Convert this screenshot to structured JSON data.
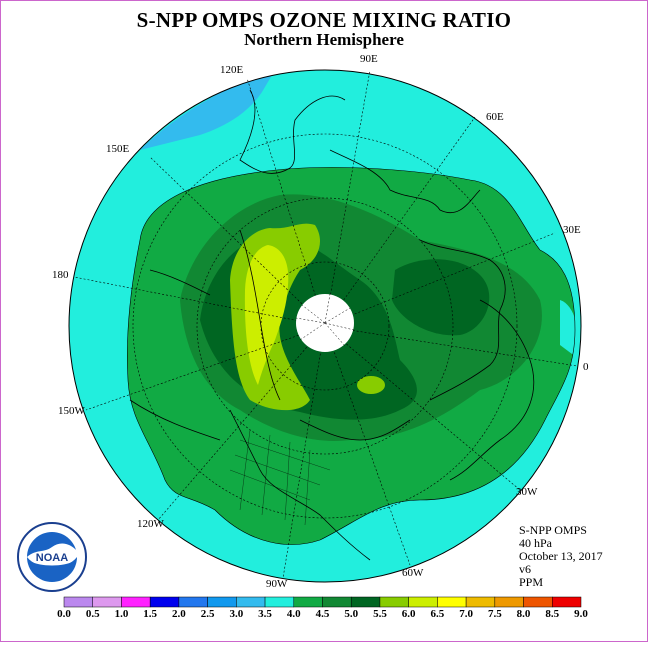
{
  "title": "S-NPP OMPS OZONE MIXING RATIO",
  "subtitle": "Northern Hemisphere",
  "longitude_labels": {
    "lon_90e": "90E",
    "lon_120e": "120E",
    "lon_60e": "60E",
    "lon_150e": "150E",
    "lon_30e": "30E",
    "lon_180": "180",
    "lon_0": "0",
    "lon_150w": "150W",
    "lon_30w": "30W",
    "lon_120w": "120W",
    "lon_60w": "60W",
    "lon_90w": "90W"
  },
  "info": {
    "instrument": "S-NPP OMPS",
    "level": "40 hPa",
    "date": "October 13, 2017",
    "version": "v6",
    "units": "PPM"
  },
  "logo_text": "NOAA",
  "colorbar": {
    "labels": [
      "0.0",
      "0.5",
      "1.0",
      "1.5",
      "2.0",
      "2.5",
      "3.0",
      "3.5",
      "4.0",
      "4.5",
      "5.0",
      "5.5",
      "6.0",
      "6.5",
      "7.0",
      "7.5",
      "8.0",
      "8.5",
      "9.0"
    ],
    "colors": [
      "#bb88ee",
      "#dd99ee",
      "#ff22ff",
      "#0000ee",
      "#2277ee",
      "#1199ee",
      "#33bbee",
      "#22eedd",
      "#11aa44",
      "#118833",
      "#006622",
      "#88cc00",
      "#ccee00",
      "#ffff00",
      "#eebb00",
      "#ee9900",
      "#ee5500",
      "#ee0000",
      "#8b5a2b"
    ]
  },
  "colors": {
    "frame": "#cc66cc",
    "cyan": "#22eedd",
    "blue": "#2299ee",
    "green1": "#11aa44",
    "green2": "#118833",
    "green3": "#006622",
    "lime": "#88cc00",
    "yellow": "#ccee00"
  }
}
